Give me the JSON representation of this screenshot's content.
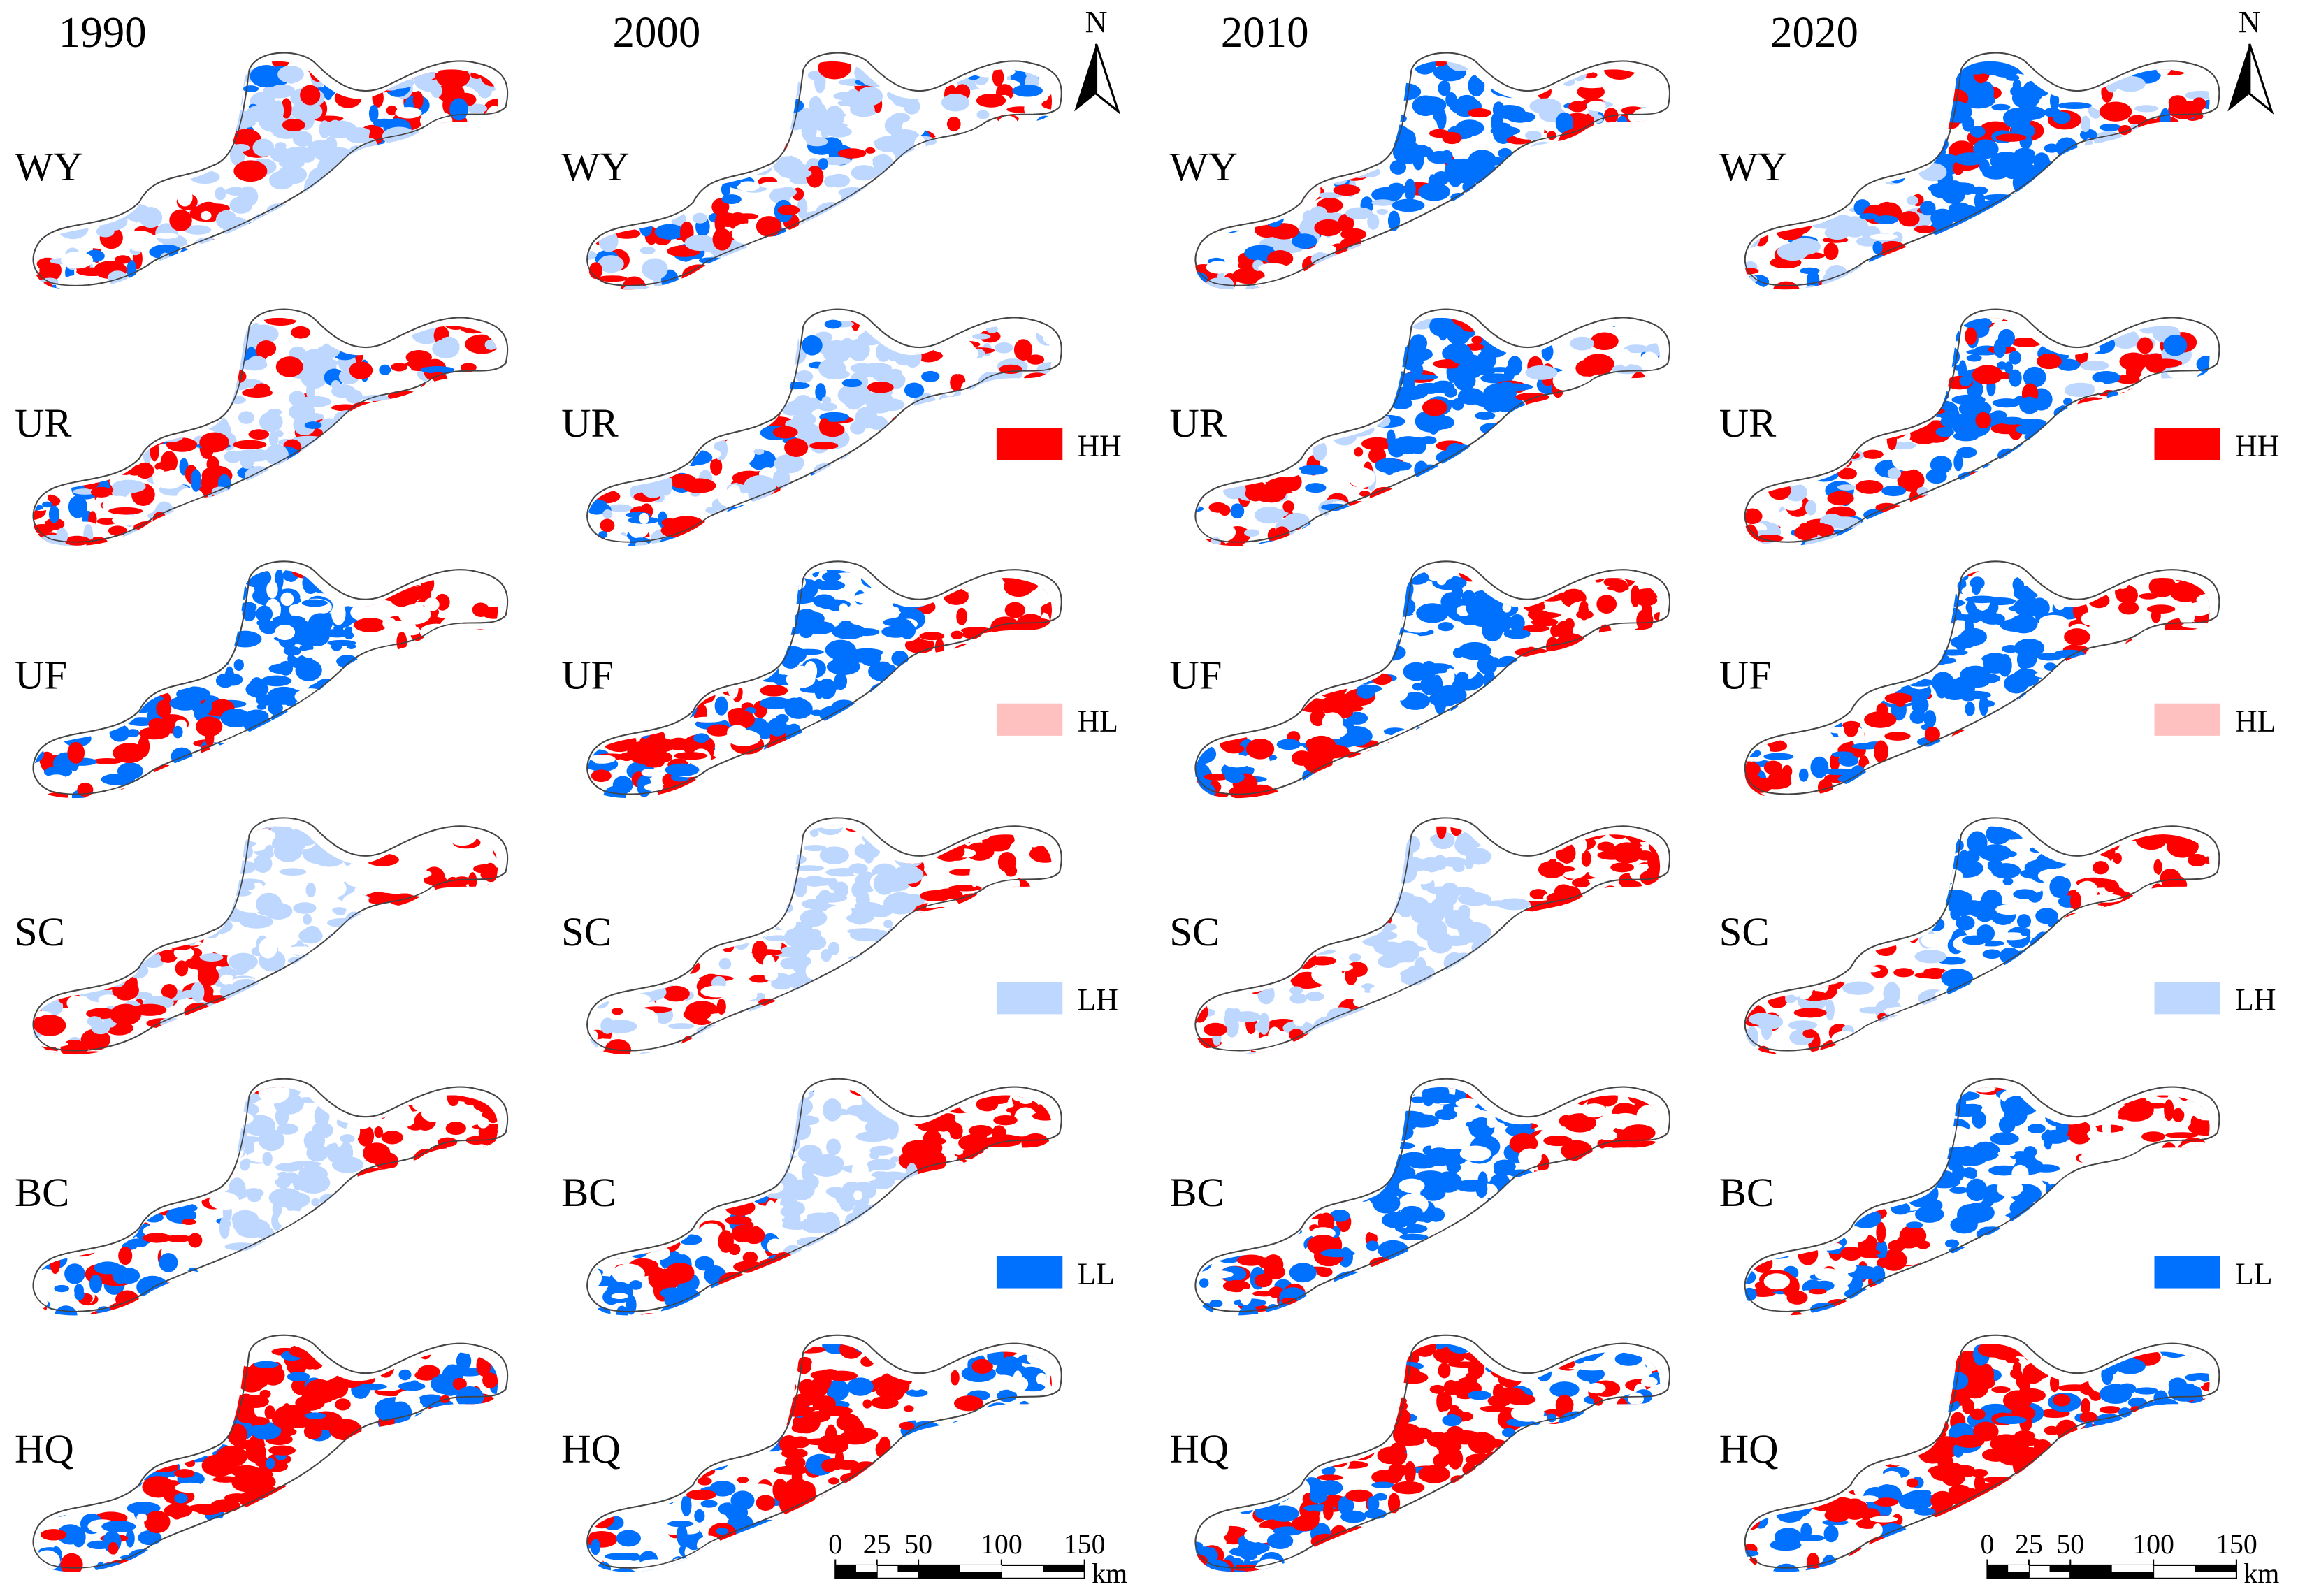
{
  "years": [
    "1990",
    "2000",
    "2010",
    "2020"
  ],
  "rows": [
    "WY",
    "UR",
    "UF",
    "SC",
    "BC",
    "HQ"
  ],
  "legend": [
    {
      "label": "HH",
      "color": "#ff0000"
    },
    {
      "label": "HL",
      "color": "#ffc0c0"
    },
    {
      "label": "LH",
      "color": "#bed7ff"
    },
    {
      "label": "LL",
      "color": "#0070ff"
    }
  ],
  "north": "N",
  "scale_bar": {
    "ticks": [
      0,
      25,
      50,
      100,
      150
    ],
    "unit": "km"
  }
}
